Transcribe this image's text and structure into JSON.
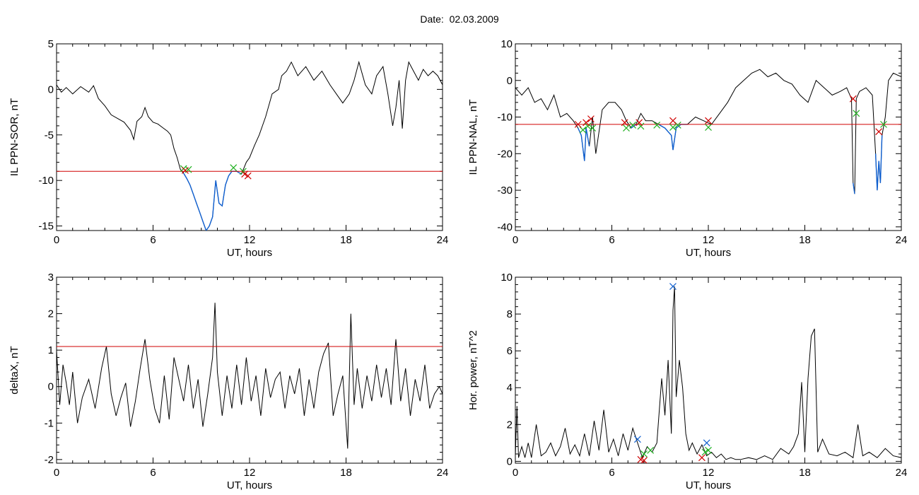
{
  "figure_title": "Date:  02.03.2009",
  "colors": {
    "trace": "#000000",
    "threshold": "#d00000",
    "below": "#1060d0",
    "start_marker": "#20b020",
    "end_marker": "#d00000",
    "peak_marker": "#1060d0"
  },
  "chart_data": [
    {
      "id": "p1",
      "type": "line",
      "xlabel": "UT, hours",
      "ylabel": "IL PPN-SOR, nT",
      "xlim": [
        0,
        24
      ],
      "ylim": [
        -15.5,
        5
      ],
      "xticks": [
        0,
        6,
        12,
        18,
        24
      ],
      "yticks": [
        5,
        0,
        -5,
        -10,
        -15
      ],
      "threshold": -9,
      "highlight_below": true,
      "x": [
        0,
        0.3,
        0.6,
        1.0,
        1.5,
        2.0,
        2.3,
        2.6,
        3.0,
        3.4,
        3.8,
        4.2,
        4.6,
        4.8,
        5.0,
        5.3,
        5.5,
        5.7,
        6.0,
        6.3,
        6.6,
        6.9,
        7.1,
        7.3,
        7.5,
        7.7,
        7.9,
        8.1,
        8.3,
        8.5,
        8.7,
        8.9,
        9.1,
        9.3,
        9.5,
        9.7,
        9.9,
        10.1,
        10.3,
        10.5,
        10.7,
        10.9,
        11.2,
        11.5,
        11.8,
        12.0,
        12.3,
        12.6,
        13.0,
        13.4,
        13.8,
        14.0,
        14.3,
        14.6,
        15.0,
        15.5,
        16.0,
        16.5,
        17.0,
        17.4,
        17.8,
        18.2,
        18.5,
        18.8,
        19.2,
        19.6,
        19.9,
        20.3,
        20.6,
        20.9,
        21.1,
        21.3,
        21.5,
        21.7,
        21.9,
        22.2,
        22.5,
        22.8,
        23.1,
        23.4,
        23.7,
        24.0
      ],
      "y": [
        0.5,
        -0.3,
        0.2,
        -0.5,
        0.3,
        -0.3,
        0.4,
        -1.0,
        -1.8,
        -2.8,
        -3.2,
        -3.6,
        -4.5,
        -5.5,
        -3.5,
        -3.0,
        -2.0,
        -3.0,
        -3.6,
        -3.8,
        -4.2,
        -4.6,
        -5.0,
        -6.5,
        -7.5,
        -8.8,
        -9.2,
        -9.8,
        -10.5,
        -11.5,
        -12.5,
        -13.5,
        -14.5,
        -15.5,
        -15.0,
        -14.0,
        -10.0,
        -12.5,
        -12.8,
        -10.5,
        -9.5,
        -9.0,
        -9.0,
        -9.3,
        -8.0,
        -7.5,
        -6.2,
        -5.0,
        -3.0,
        -0.5,
        0.0,
        1.5,
        2.0,
        3.0,
        1.5,
        2.5,
        1.0,
        2.0,
        0.5,
        -0.5,
        -1.5,
        -0.5,
        1.0,
        3.0,
        0.5,
        -0.5,
        1.5,
        2.5,
        -0.5,
        -4.0,
        -2.0,
        1.0,
        -4.3,
        1.0,
        3.0,
        2.0,
        1.0,
        2.2,
        1.5,
        2.0,
        1.5,
        0.5
      ],
      "start_markers": [
        {
          "x": 7.9,
          "y": -8.7
        },
        {
          "x": 8.2,
          "y": -8.8
        },
        {
          "x": 11.0,
          "y": -8.6
        },
        {
          "x": 11.6,
          "y": -9.0
        }
      ],
      "end_markers": [
        {
          "x": 8.0,
          "y": -8.9
        },
        {
          "x": 11.7,
          "y": -9.3
        },
        {
          "x": 11.9,
          "y": -9.5
        }
      ],
      "peak_markers": []
    },
    {
      "id": "p2",
      "type": "line",
      "xlabel": "UT, hours",
      "ylabel": "IL PPN-NAL, nT",
      "xlim": [
        0,
        24
      ],
      "ylim": [
        -41,
        10
      ],
      "xticks": [
        0,
        6,
        12,
        18,
        24
      ],
      "yticks": [
        10,
        0,
        -10,
        -20,
        -30,
        -40
      ],
      "threshold": -12,
      "highlight_below": true,
      "x": [
        0,
        0.4,
        0.8,
        1.2,
        1.6,
        2.0,
        2.4,
        2.8,
        3.2,
        3.6,
        3.9,
        4.1,
        4.3,
        4.4,
        4.6,
        4.8,
        5.0,
        5.4,
        5.8,
        6.2,
        6.6,
        6.9,
        7.2,
        7.5,
        7.8,
        8.1,
        8.5,
        8.9,
        9.3,
        9.7,
        9.8,
        10.0,
        10.3,
        10.7,
        11.2,
        11.7,
        12.2,
        12.7,
        13.2,
        13.7,
        14.2,
        14.7,
        15.2,
        15.7,
        16.2,
        16.7,
        17.2,
        17.7,
        18.2,
        18.7,
        19.2,
        19.7,
        20.2,
        20.6,
        20.9,
        21.0,
        21.1,
        21.2,
        21.4,
        21.8,
        22.2,
        22.4,
        22.5,
        22.6,
        22.7,
        22.8,
        23.0,
        23.2,
        23.5,
        24.0
      ],
      "y": [
        -2,
        -4,
        -2,
        -6,
        -5,
        -8,
        -4,
        -10,
        -9,
        -11,
        -13,
        -15,
        -22,
        -13,
        -18,
        -10,
        -20,
        -8,
        -6,
        -6,
        -8,
        -11,
        -13,
        -12,
        -9,
        -11,
        -11,
        -12,
        -13,
        -15,
        -19,
        -13,
        -12,
        -12,
        -10,
        -11,
        -12,
        -9,
        -6,
        -2,
        0,
        2,
        3,
        1,
        2,
        0,
        -1,
        -4,
        -6,
        0,
        -2,
        -4,
        -3,
        -2,
        -5,
        -28,
        -31,
        -5,
        -3,
        -2,
        -4,
        -20,
        -30,
        -22,
        -28,
        -15,
        -10,
        0,
        2,
        1
      ],
      "start_markers": [
        {
          "x": 4.2,
          "y": -13.5
        },
        {
          "x": 4.5,
          "y": -12.5
        },
        {
          "x": 4.8,
          "y": -13.0
        },
        {
          "x": 6.9,
          "y": -13.0
        },
        {
          "x": 7.3,
          "y": -12.2
        },
        {
          "x": 7.8,
          "y": -12.5
        },
        {
          "x": 8.8,
          "y": -12.2
        },
        {
          "x": 9.8,
          "y": -12.8
        },
        {
          "x": 10.1,
          "y": -12.2
        },
        {
          "x": 12.0,
          "y": -12.8
        },
        {
          "x": 21.2,
          "y": -9.0
        },
        {
          "x": 22.9,
          "y": -12.0
        }
      ],
      "end_markers": [
        {
          "x": 3.9,
          "y": -12.0
        },
        {
          "x": 4.4,
          "y": -11.5
        },
        {
          "x": 4.7,
          "y": -10.5
        },
        {
          "x": 6.8,
          "y": -11.5
        },
        {
          "x": 7.7,
          "y": -11.5
        },
        {
          "x": 9.8,
          "y": -11.0
        },
        {
          "x": 12.0,
          "y": -11.0
        },
        {
          "x": 21.0,
          "y": -5.0
        },
        {
          "x": 22.6,
          "y": -14.0
        }
      ],
      "peak_markers": []
    },
    {
      "id": "p3",
      "type": "line",
      "xlabel": "UT, hours",
      "ylabel": "deltaX, nT",
      "xlim": [
        0,
        24
      ],
      "ylim": [
        -2.1,
        3
      ],
      "xticks": [
        0,
        6,
        12,
        18,
        24
      ],
      "yticks": [
        3,
        2,
        1,
        0,
        -1,
        -2
      ],
      "threshold": 1.1,
      "highlight_below": false,
      "x": [
        0,
        0.2,
        0.4,
        0.6,
        0.8,
        1.0,
        1.3,
        1.6,
        2.0,
        2.4,
        2.8,
        3.1,
        3.4,
        3.7,
        4.0,
        4.3,
        4.6,
        4.9,
        5.2,
        5.5,
        5.8,
        6.1,
        6.4,
        6.7,
        7.0,
        7.3,
        7.6,
        7.9,
        8.2,
        8.5,
        8.8,
        9.1,
        9.4,
        9.7,
        9.85,
        10.0,
        10.3,
        10.6,
        10.9,
        11.2,
        11.5,
        11.8,
        12.1,
        12.4,
        12.7,
        13.0,
        13.3,
        13.6,
        13.9,
        14.2,
        14.5,
        14.8,
        15.1,
        15.4,
        15.7,
        16.0,
        16.3,
        16.6,
        16.9,
        17.2,
        17.5,
        17.8,
        18.1,
        18.3,
        18.5,
        18.7,
        19.0,
        19.3,
        19.6,
        19.9,
        20.2,
        20.5,
        20.8,
        21.1,
        21.4,
        21.7,
        22.0,
        22.3,
        22.6,
        22.9,
        23.2,
        23.5,
        23.8,
        24.0
      ],
      "y": [
        1.0,
        -0.5,
        0.6,
        0.1,
        -0.5,
        0.4,
        -1.0,
        -0.3,
        0.2,
        -0.6,
        0.5,
        1.1,
        -0.2,
        -0.8,
        -0.3,
        0.1,
        -1.1,
        -0.4,
        0.5,
        1.3,
        0.2,
        -0.6,
        -1.0,
        0.3,
        -0.9,
        0.8,
        0.2,
        -0.4,
        0.6,
        -0.6,
        0.2,
        -1.1,
        -0.2,
        0.8,
        2.3,
        0.4,
        -0.8,
        0.3,
        -0.6,
        0.6,
        -0.5,
        0.8,
        -0.4,
        0.3,
        -0.8,
        0.5,
        -0.3,
        0.2,
        0.4,
        -0.6,
        0.3,
        -0.2,
        0.5,
        -0.8,
        0.2,
        -0.6,
        0.4,
        0.9,
        1.2,
        -0.8,
        -0.2,
        0.3,
        -1.7,
        2.0,
        -0.5,
        0.5,
        -0.6,
        0.3,
        -0.4,
        0.6,
        -0.3,
        0.5,
        -0.5,
        1.3,
        -0.4,
        0.5,
        -0.8,
        0.2,
        -0.4,
        0.6,
        -0.6,
        -0.2,
        0.0,
        -0.2
      ],
      "start_markers": [],
      "end_markers": [],
      "peak_markers": []
    },
    {
      "id": "p4",
      "type": "line",
      "xlabel": "UT, hours",
      "ylabel": "Hor. power, nT^2",
      "xlim": [
        0,
        24
      ],
      "ylim": [
        -0.1,
        10
      ],
      "xticks": [
        0,
        6,
        12,
        18,
        24
      ],
      "yticks": [
        10,
        8,
        6,
        4,
        2,
        0
      ],
      "threshold": null,
      "highlight_below": false,
      "x": [
        0,
        0.1,
        0.2,
        0.4,
        0.6,
        0.8,
        1.0,
        1.3,
        1.6,
        1.9,
        2.2,
        2.5,
        2.8,
        3.1,
        3.4,
        3.7,
        4.0,
        4.3,
        4.6,
        4.9,
        5.2,
        5.5,
        5.8,
        6.1,
        6.4,
        6.7,
        7.0,
        7.3,
        7.6,
        7.9,
        8.2,
        8.5,
        8.8,
        9.1,
        9.3,
        9.5,
        9.7,
        9.8,
        9.9,
        10.0,
        10.2,
        10.4,
        10.6,
        10.8,
        11.0,
        11.3,
        11.6,
        11.9,
        12.2,
        12.5,
        12.8,
        13.1,
        13.4,
        13.7,
        14.0,
        14.5,
        15.0,
        15.5,
        16.0,
        16.5,
        17.0,
        17.3,
        17.6,
        17.8,
        18.0,
        18.2,
        18.4,
        18.6,
        18.8,
        19.1,
        19.5,
        20.0,
        20.5,
        21.0,
        21.3,
        21.6,
        22.0,
        22.5,
        23.0,
        23.5,
        24.0
      ],
      "y": [
        0.3,
        3.0,
        0.2,
        0.8,
        0.2,
        1.0,
        0.2,
        2.0,
        0.3,
        0.5,
        1.0,
        0.3,
        0.8,
        1.8,
        0.4,
        0.9,
        0.3,
        1.5,
        0.3,
        2.2,
        0.6,
        2.8,
        0.5,
        1.2,
        0.3,
        1.5,
        0.6,
        1.8,
        1.0,
        0.2,
        0.8,
        0.5,
        1.0,
        4.5,
        2.5,
        5.5,
        1.5,
        8.2,
        9.5,
        3.5,
        5.5,
        4.0,
        1.5,
        0.6,
        1.0,
        0.4,
        0.9,
        0.3,
        0.5,
        0.2,
        0.4,
        0.1,
        0.2,
        0.1,
        0.1,
        0.2,
        0.1,
        0.3,
        0.1,
        0.7,
        0.4,
        0.8,
        1.5,
        4.3,
        0.5,
        4.5,
        6.8,
        7.2,
        0.5,
        1.2,
        0.4,
        0.3,
        0.5,
        0.2,
        2.0,
        0.3,
        0.5,
        0.2,
        0.7,
        0.3,
        0.2
      ],
      "start_markers": [
        {
          "x": 8.0,
          "y": 0.4
        },
        {
          "x": 8.4,
          "y": 0.6
        },
        {
          "x": 11.8,
          "y": 0.5
        },
        {
          "x": 12.0,
          "y": 0.6
        }
      ],
      "end_markers": [
        {
          "x": 7.8,
          "y": 0.1
        },
        {
          "x": 8.0,
          "y": 0.05
        },
        {
          "x": 11.6,
          "y": 0.2
        }
      ],
      "peak_markers": [
        {
          "x": 9.8,
          "y": 9.5
        },
        {
          "x": 7.6,
          "y": 1.2
        },
        {
          "x": 11.9,
          "y": 1.0
        }
      ]
    }
  ]
}
